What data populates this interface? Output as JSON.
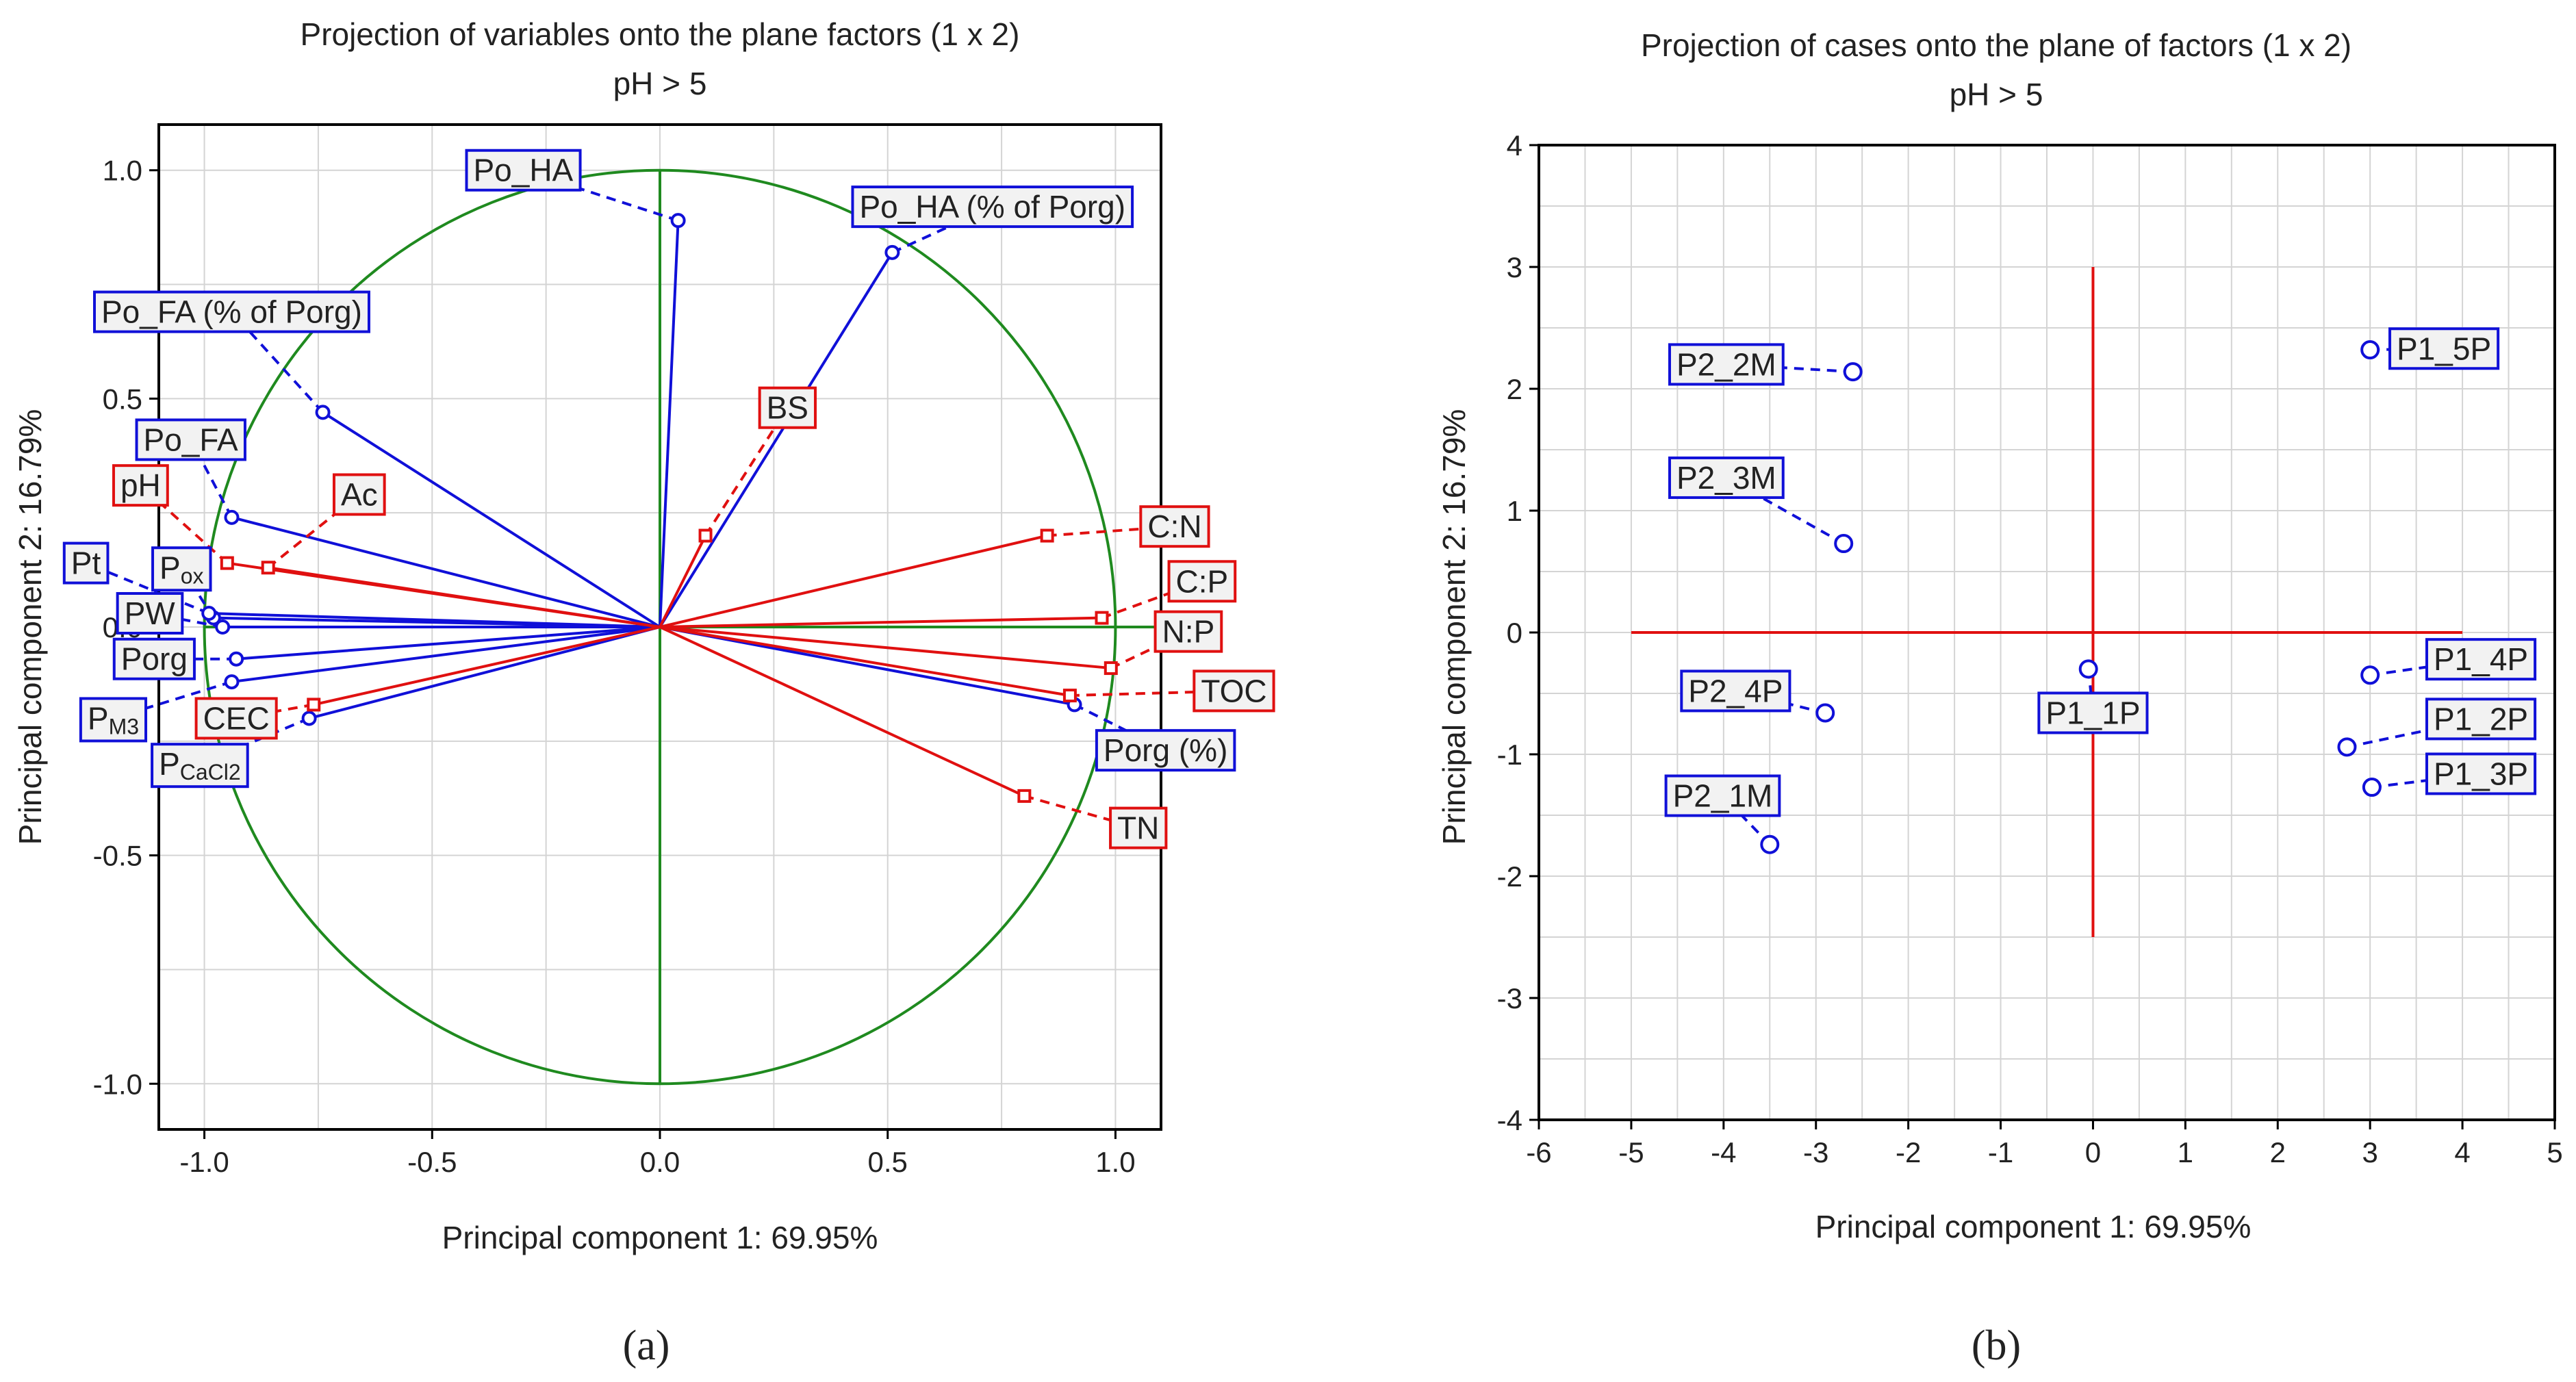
{
  "colors": {
    "variable_blue": "#1010d8",
    "variable_red": "#e01010",
    "circle_green": "#1f8a1f",
    "grid": "#d4d4d4"
  },
  "chart_data": [
    {
      "type": "scatter",
      "panel": "(a)",
      "title": "Projection of variables onto the plane factors (1 x 2)",
      "subtitle": "pH > 5",
      "xlabel": "Principal component 1: 69.95%",
      "ylabel": "Principal component 2: 16.79%",
      "xlim": [
        -1.1,
        1.1
      ],
      "ylim": [
        -1.1,
        1.1
      ],
      "xticks": [
        {
          "v": -1.0,
          "label": "-1.0"
        },
        {
          "v": -0.5,
          "label": "-0.5"
        },
        {
          "v": 0.0,
          "label": "0.0"
        },
        {
          "v": 0.5,
          "label": "0.5"
        },
        {
          "v": 1.0,
          "label": "1.0"
        }
      ],
      "yticks": [
        {
          "v": 1.0,
          "label": "1.0"
        },
        {
          "v": 0.5,
          "label": "0.5"
        },
        {
          "v": 0.0,
          "label": "0.0"
        },
        {
          "v": -0.5,
          "label": "-0.5"
        },
        {
          "v": -1.0,
          "label": "-1.0"
        }
      ],
      "series": [
        {
          "name": "blue variables",
          "color": "#1010d8",
          "marker": "circle",
          "points": [
            {
              "label": "Po_HA",
              "x": 0.04,
              "y": 0.89,
              "lx": -0.3,
              "ly": 1.0
            },
            {
              "label": "Po_HA (% of Porg)",
              "x": 0.51,
              "y": 0.82,
              "lx": 0.73,
              "ly": 0.92
            },
            {
              "label": "Po_FA (% of Porg)",
              "x": -0.74,
              "y": 0.47,
              "lx": -0.94,
              "ly": 0.69
            },
            {
              "label": "Po_FA",
              "x": -0.94,
              "y": 0.24,
              "lx": -1.03,
              "ly": 0.41
            },
            {
              "label": "P",
              "sub": "ox",
              "x": -0.98,
              "y": 0.02,
              "lx": -1.05,
              "ly": 0.13
            },
            {
              "label": "PW",
              "x": -0.96,
              "y": 0.0,
              "lx": -1.12,
              "ly": 0.03
            },
            {
              "label": "Pt",
              "x": -0.99,
              "y": 0.03,
              "lx": -1.26,
              "ly": 0.14
            },
            {
              "label": "Porg",
              "x": -0.93,
              "y": -0.07,
              "lx": -1.11,
              "ly": -0.07
            },
            {
              "label": "P",
              "sub": "M3",
              "x": -0.94,
              "y": -0.12,
              "lx": -1.2,
              "ly": -0.2
            },
            {
              "label": "P",
              "sub": "CaCl2",
              "x": -0.77,
              "y": -0.2,
              "lx": -1.01,
              "ly": -0.3
            },
            {
              "label": "Porg (%)",
              "x": 0.91,
              "y": -0.17,
              "lx": 1.11,
              "ly": -0.27
            }
          ]
        },
        {
          "name": "red variables",
          "color": "#e01010",
          "marker": "square",
          "points": [
            {
              "label": "BS",
              "x": 0.1,
              "y": 0.2,
              "lx": 0.28,
              "ly": 0.48
            },
            {
              "label": "pH",
              "x": -0.95,
              "y": 0.14,
              "lx": -1.14,
              "ly": 0.31
            },
            {
              "label": "Ac",
              "x": -0.86,
              "y": 0.13,
              "lx": -0.66,
              "ly": 0.29
            },
            {
              "label": "C:N",
              "x": 0.85,
              "y": 0.2,
              "lx": 1.13,
              "ly": 0.22
            },
            {
              "label": "C:P",
              "x": 0.97,
              "y": 0.02,
              "lx": 1.19,
              "ly": 0.1
            },
            {
              "label": "N:P",
              "x": 0.99,
              "y": -0.09,
              "lx": 1.16,
              "ly": -0.01
            },
            {
              "label": "TOC",
              "x": 0.9,
              "y": -0.15,
              "lx": 1.26,
              "ly": -0.14
            },
            {
              "label": "CEC",
              "x": -0.76,
              "y": -0.17,
              "lx": -0.93,
              "ly": -0.2
            },
            {
              "label": "TN",
              "x": 0.8,
              "y": -0.37,
              "lx": 1.05,
              "ly": -0.44
            }
          ]
        }
      ]
    },
    {
      "type": "scatter",
      "panel": "(b)",
      "title": "Projection of cases onto the plane of factors (1 x 2)",
      "subtitle": "pH > 5",
      "xlabel": "Principal component 1: 69.95%",
      "ylabel": "Principal component 2: 16.79%",
      "xlim": [
        -6,
        5
      ],
      "ylim": [
        -4,
        4
      ],
      "xticks": [
        {
          "v": -6,
          "label": "-6"
        },
        {
          "v": -5,
          "label": "-5"
        },
        {
          "v": -4,
          "label": "-4"
        },
        {
          "v": -3,
          "label": "-3"
        },
        {
          "v": -2,
          "label": "-2"
        },
        {
          "v": -1,
          "label": "-1"
        },
        {
          "v": 0,
          "label": "0"
        },
        {
          "v": 1,
          "label": "1"
        },
        {
          "v": 2,
          "label": "2"
        },
        {
          "v": 3,
          "label": "3"
        },
        {
          "v": 4,
          "label": "4"
        },
        {
          "v": 5,
          "label": "5"
        }
      ],
      "yticks": [
        {
          "v": 4,
          "label": "4"
        },
        {
          "v": 3,
          "label": "3"
        },
        {
          "v": 2,
          "label": "2"
        },
        {
          "v": 1,
          "label": "1"
        },
        {
          "v": 0,
          "label": "0"
        },
        {
          "v": -1,
          "label": "-1"
        },
        {
          "v": -2,
          "label": "-2"
        },
        {
          "v": -3,
          "label": "-3"
        },
        {
          "v": -4,
          "label": "-4"
        }
      ],
      "points": [
        {
          "label": "P2_2M",
          "x": -2.6,
          "y": 2.14,
          "lx": -3.97,
          "ly": 2.2
        },
        {
          "label": "P2_3M",
          "x": -2.7,
          "y": 0.73,
          "lx": -3.97,
          "ly": 1.27
        },
        {
          "label": "P2_4P",
          "x": -2.9,
          "y": -0.66,
          "lx": -3.87,
          "ly": -0.48
        },
        {
          "label": "P2_1M",
          "x": -3.5,
          "y": -1.74,
          "lx": -4.01,
          "ly": -1.34
        },
        {
          "label": "P1_1P",
          "x": -0.05,
          "y": -0.3,
          "lx": 0.0,
          "ly": -0.66
        },
        {
          "label": "P1_5P",
          "x": 3.0,
          "y": 2.32,
          "lx": 3.8,
          "ly": 2.33
        },
        {
          "label": "P1_4P",
          "x": 3.0,
          "y": -0.35,
          "lx": 4.2,
          "ly": -0.22
        },
        {
          "label": "P1_2P",
          "x": 2.75,
          "y": -0.94,
          "lx": 4.2,
          "ly": -0.71
        },
        {
          "label": "P1_3P",
          "x": 3.02,
          "y": -1.27,
          "lx": 4.2,
          "ly": -1.16
        }
      ]
    }
  ]
}
